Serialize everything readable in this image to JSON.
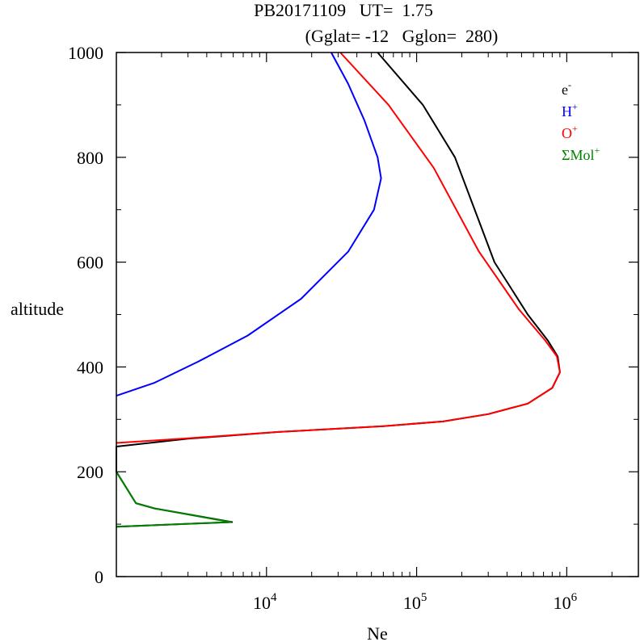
{
  "chart_data": {
    "type": "line",
    "title_line1": "PB20171109   UT=  1.75",
    "title_line2": "(Gglat= -12   Gglon=  280)",
    "xlabel": "Ne",
    "ylabel": "altitude",
    "x_scale": "log",
    "xlim": [
      1000,
      3000000
    ],
    "ylim": [
      0,
      1000
    ],
    "x_ticks": [
      {
        "base": "10",
        "exp": "4"
      },
      {
        "base": "10",
        "exp": "5"
      },
      {
        "base": "10",
        "exp": "6"
      }
    ],
    "y_ticks": [
      "0",
      "200",
      "400",
      "600",
      "800",
      "1000"
    ],
    "grid": false,
    "legend_position": "top-right",
    "series": [
      {
        "name": "e",
        "name_sup": "-",
        "color": "#000000",
        "points": [
          [
            1000,
            95
          ],
          [
            5900,
            104
          ],
          [
            4500,
            110
          ],
          [
            1800,
            130
          ],
          [
            1350,
            140
          ],
          [
            1000,
            200
          ],
          [
            1000,
            248
          ],
          [
            3000,
            263
          ],
          [
            12000,
            276
          ],
          [
            60000,
            287
          ],
          [
            150000,
            296
          ],
          [
            300000,
            310
          ],
          [
            550000,
            330
          ],
          [
            800000,
            360
          ],
          [
            900000,
            390
          ],
          [
            870000,
            420
          ],
          [
            750000,
            450
          ],
          [
            550000,
            500
          ],
          [
            330000,
            600
          ],
          [
            180000,
            800
          ],
          [
            110000,
            900
          ],
          [
            55000,
            1000
          ]
        ]
      },
      {
        "name": "H",
        "name_sup": "+",
        "color": "#0000ff",
        "points": [
          [
            1000,
            345
          ],
          [
            1800,
            370
          ],
          [
            3500,
            410
          ],
          [
            7500,
            460
          ],
          [
            17000,
            530
          ],
          [
            35000,
            620
          ],
          [
            52000,
            700
          ],
          [
            58000,
            760
          ],
          [
            55000,
            800
          ],
          [
            45000,
            870
          ],
          [
            35000,
            940
          ],
          [
            27000,
            1000
          ]
        ]
      },
      {
        "name": "O",
        "name_sup": "+",
        "color": "#ff0000",
        "points": [
          [
            1000,
            255
          ],
          [
            3000,
            264
          ],
          [
            12000,
            276
          ],
          [
            60000,
            287
          ],
          [
            150000,
            296
          ],
          [
            300000,
            310
          ],
          [
            550000,
            330
          ],
          [
            800000,
            360
          ],
          [
            900000,
            390
          ],
          [
            860000,
            420
          ],
          [
            720000,
            450
          ],
          [
            480000,
            510
          ],
          [
            260000,
            620
          ],
          [
            130000,
            780
          ],
          [
            65000,
            900
          ],
          [
            31000,
            1000
          ]
        ]
      },
      {
        "name": "ΣMol",
        "name_sup": "+",
        "color": "#008000",
        "points": [
          [
            1000,
            95
          ],
          [
            5800,
            104
          ],
          [
            4400,
            110
          ],
          [
            1800,
            130
          ],
          [
            1350,
            140
          ],
          [
            1000,
            200
          ]
        ]
      }
    ]
  }
}
